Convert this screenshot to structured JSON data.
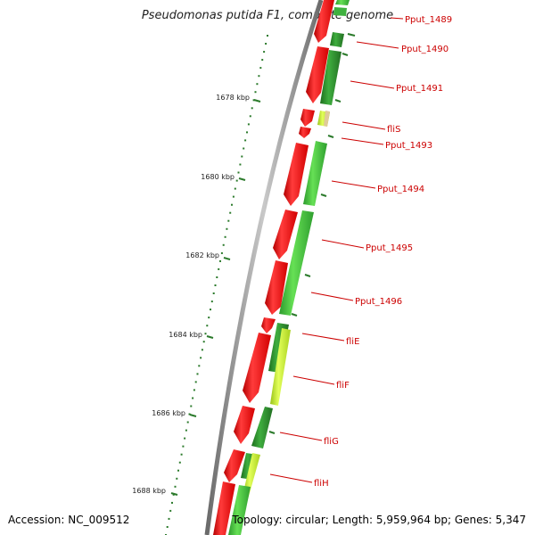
{
  "title": "Pseudomonas putida F1, complete genome",
  "footer": {
    "accession": "Accession: NC_009512",
    "topology": "Topology: circular; Length: 5,959,964 bp; Genes: 5,347"
  },
  "colors": {
    "red": "#e8000d",
    "green_light": "#44cc33",
    "green_dark": "#2a9a2a",
    "yellow_green": "#c6f02a",
    "label_red": "#cc0000",
    "tick_green": "#2b7a2b"
  },
  "scale_ticks": [
    {
      "label": "1678 kbp"
    },
    {
      "label": "1680 kbp"
    },
    {
      "label": "1682 kbp"
    },
    {
      "label": "1684 kbp"
    },
    {
      "label": "1686 kbp"
    },
    {
      "label": "1688 kbp"
    }
  ],
  "genes": [
    {
      "name": "Pput_1489"
    },
    {
      "name": "Pput_1490"
    },
    {
      "name": "Pput_1491"
    },
    {
      "name": "fliS"
    },
    {
      "name": "Pput_1493"
    },
    {
      "name": "Pput_1494"
    },
    {
      "name": "Pput_1495"
    },
    {
      "name": "Pput_1496"
    },
    {
      "name": "fliE"
    },
    {
      "name": "fliF"
    },
    {
      "name": "fliG"
    },
    {
      "name": "fliH"
    }
  ]
}
